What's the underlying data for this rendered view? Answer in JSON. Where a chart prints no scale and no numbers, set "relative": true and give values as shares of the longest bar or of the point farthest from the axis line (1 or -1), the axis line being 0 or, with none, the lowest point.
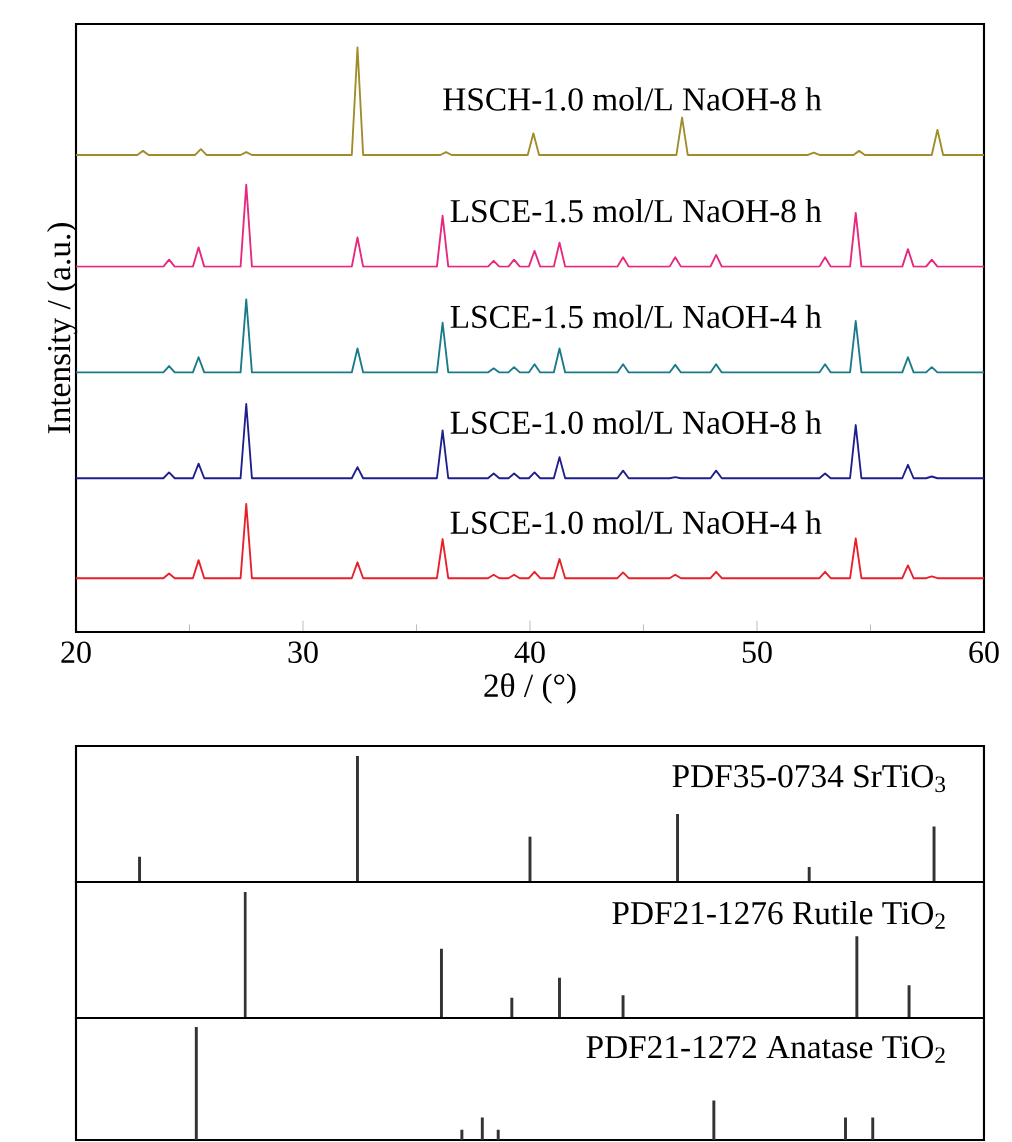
{
  "chart_data": [
    {
      "type": "line",
      "relative": true,
      "xlabel": "2θ / (°)",
      "ylabel": "Intensity / (a.u.)",
      "xlim": [
        20,
        60
      ],
      "xticks": [
        20,
        30,
        40,
        50,
        60
      ],
      "x": [
        20,
        23.85,
        24.1,
        24.35,
        25.15,
        25.4,
        25.65,
        27.25,
        27.5,
        27.75,
        32.15,
        32.4,
        32.65,
        35.9,
        36.15,
        36.4,
        38.15,
        38.4,
        38.65,
        39.05,
        39.3,
        39.55,
        39.95,
        40.2,
        40.45,
        41.05,
        41.3,
        41.55,
        43.85,
        44.1,
        44.35,
        46.15,
        46.4,
        46.65,
        47.95,
        48.2,
        48.45,
        52.75,
        53.0,
        53.25,
        54.1,
        54.35,
        54.6,
        56.4,
        56.65,
        56.9,
        57.45,
        57.7,
        57.95,
        60
      ],
      "series": [
        {
          "name": "HSCH-1.0 mol/L NaOH-8 h",
          "color": "#a08c28",
          "x": [
            20,
            22.7,
            22.95,
            23.2,
            25.25,
            25.5,
            25.75,
            27.25,
            27.5,
            27.75,
            32.15,
            32.4,
            32.65,
            36.05,
            36.3,
            36.55,
            39.9,
            40.15,
            40.4,
            46.45,
            46.7,
            46.95,
            52.25,
            52.5,
            52.75,
            54.25,
            54.5,
            54.75,
            57.7,
            57.95,
            58.2,
            60
          ],
          "values": [
            0.816,
            0.816,
            0.823,
            0.816,
            0.816,
            0.826,
            0.816,
            0.816,
            0.821,
            0.816,
            0.816,
            1.0,
            0.816,
            0.816,
            0.821,
            0.816,
            0.816,
            0.853,
            0.816,
            0.816,
            0.88,
            0.816,
            0.816,
            0.82,
            0.816,
            0.816,
            0.823,
            0.816,
            0.816,
            0.859,
            0.816,
            0.816
          ]
        },
        {
          "name": "LSCE-1.5 mol/L NaOH-8 h",
          "color": "#e6287f",
          "values": [
            0.625,
            0.625,
            0.637,
            0.625,
            0.625,
            0.658,
            0.625,
            0.625,
            0.765,
            0.625,
            0.625,
            0.675,
            0.625,
            0.625,
            0.712,
            0.625,
            0.625,
            0.635,
            0.625,
            0.625,
            0.637,
            0.625,
            0.625,
            0.652,
            0.625,
            0.625,
            0.666,
            0.625,
            0.625,
            0.641,
            0.625,
            0.625,
            0.641,
            0.625,
            0.625,
            0.645,
            0.625,
            0.625,
            0.641,
            0.625,
            0.625,
            0.717,
            0.625,
            0.625,
            0.655,
            0.625,
            0.625,
            0.637,
            0.625,
            0.625
          ]
        },
        {
          "name": "LSCE-1.5 mol/L NaOH-4 h",
          "color": "#1a7a8a",
          "values": [
            0.444,
            0.444,
            0.455,
            0.444,
            0.444,
            0.47,
            0.444,
            0.444,
            0.569,
            0.444,
            0.444,
            0.485,
            0.444,
            0.444,
            0.529,
            0.444,
            0.444,
            0.451,
            0.444,
            0.444,
            0.453,
            0.444,
            0.444,
            0.458,
            0.444,
            0.444,
            0.485,
            0.444,
            0.444,
            0.458,
            0.444,
            0.444,
            0.457,
            0.444,
            0.444,
            0.458,
            0.444,
            0.444,
            0.458,
            0.444,
            0.444,
            0.532,
            0.444,
            0.444,
            0.47,
            0.444,
            0.444,
            0.453,
            0.444,
            0.444
          ]
        },
        {
          "name": "LSCE-1.0 mol/L NaOH-8 h",
          "color": "#1f1f8c",
          "values": [
            0.263,
            0.263,
            0.273,
            0.263,
            0.263,
            0.288,
            0.263,
            0.263,
            0.39,
            0.263,
            0.263,
            0.282,
            0.263,
            0.263,
            0.345,
            0.263,
            0.263,
            0.271,
            0.263,
            0.263,
            0.271,
            0.263,
            0.263,
            0.273,
            0.263,
            0.263,
            0.299,
            0.263,
            0.263,
            0.276,
            0.263,
            0.263,
            0.265,
            0.263,
            0.263,
            0.276,
            0.263,
            0.263,
            0.271,
            0.263,
            0.263,
            0.354,
            0.263,
            0.263,
            0.286,
            0.263,
            0.263,
            0.266,
            0.263,
            0.263
          ]
        },
        {
          "name": "LSCE-1.0 mol/L NaOH-4 h",
          "color": "#e8202a",
          "values": [
            0.092,
            0.092,
            0.1,
            0.092,
            0.092,
            0.123,
            0.092,
            0.092,
            0.219,
            0.092,
            0.092,
            0.119,
            0.092,
            0.092,
            0.159,
            0.092,
            0.092,
            0.098,
            0.092,
            0.092,
            0.098,
            0.092,
            0.092,
            0.103,
            0.092,
            0.092,
            0.125,
            0.092,
            0.092,
            0.102,
            0.092,
            0.092,
            0.098,
            0.092,
            0.092,
            0.103,
            0.092,
            0.092,
            0.103,
            0.092,
            0.092,
            0.16,
            0.092,
            0.092,
            0.114,
            0.092,
            0.092,
            0.095,
            0.092,
            0.092
          ]
        }
      ]
    },
    {
      "type": "bar",
      "relative": true,
      "xlim": [
        20,
        60
      ],
      "tick_labels": false,
      "x": [
        22.8,
        32.4,
        40.0,
        46.5,
        52.3,
        57.8
      ],
      "series": [
        {
          "name": "PDF35-0734 SrTiO$_{3}$",
          "color": "#333333",
          "values": [
            0.2,
            1.0,
            0.36,
            0.54,
            0.12,
            0.44
          ]
        }
      ]
    },
    {
      "type": "bar",
      "relative": true,
      "xlim": [
        20,
        60
      ],
      "tick_labels": false,
      "x": [
        27.45,
        36.1,
        39.2,
        41.3,
        44.1,
        54.4,
        56.7
      ],
      "series": [
        {
          "name": "PDF21-1276 Rutile TiO$_{2}$",
          "color": "#333333",
          "values": [
            1.0,
            0.55,
            0.16,
            0.32,
            0.18,
            0.65,
            0.26
          ]
        }
      ]
    },
    {
      "type": "bar",
      "relative": true,
      "xlim": [
        20,
        60
      ],
      "tick_labels": false,
      "x": [
        25.3,
        37.0,
        37.9,
        38.6,
        48.1,
        53.9,
        55.1
      ],
      "series": [
        {
          "name": "PDF21-1272 Anatase TiO$_{2}$",
          "color": "#333333",
          "values": [
            1.0,
            0.09,
            0.2,
            0.09,
            0.35,
            0.2,
            0.2
          ]
        }
      ]
    }
  ]
}
